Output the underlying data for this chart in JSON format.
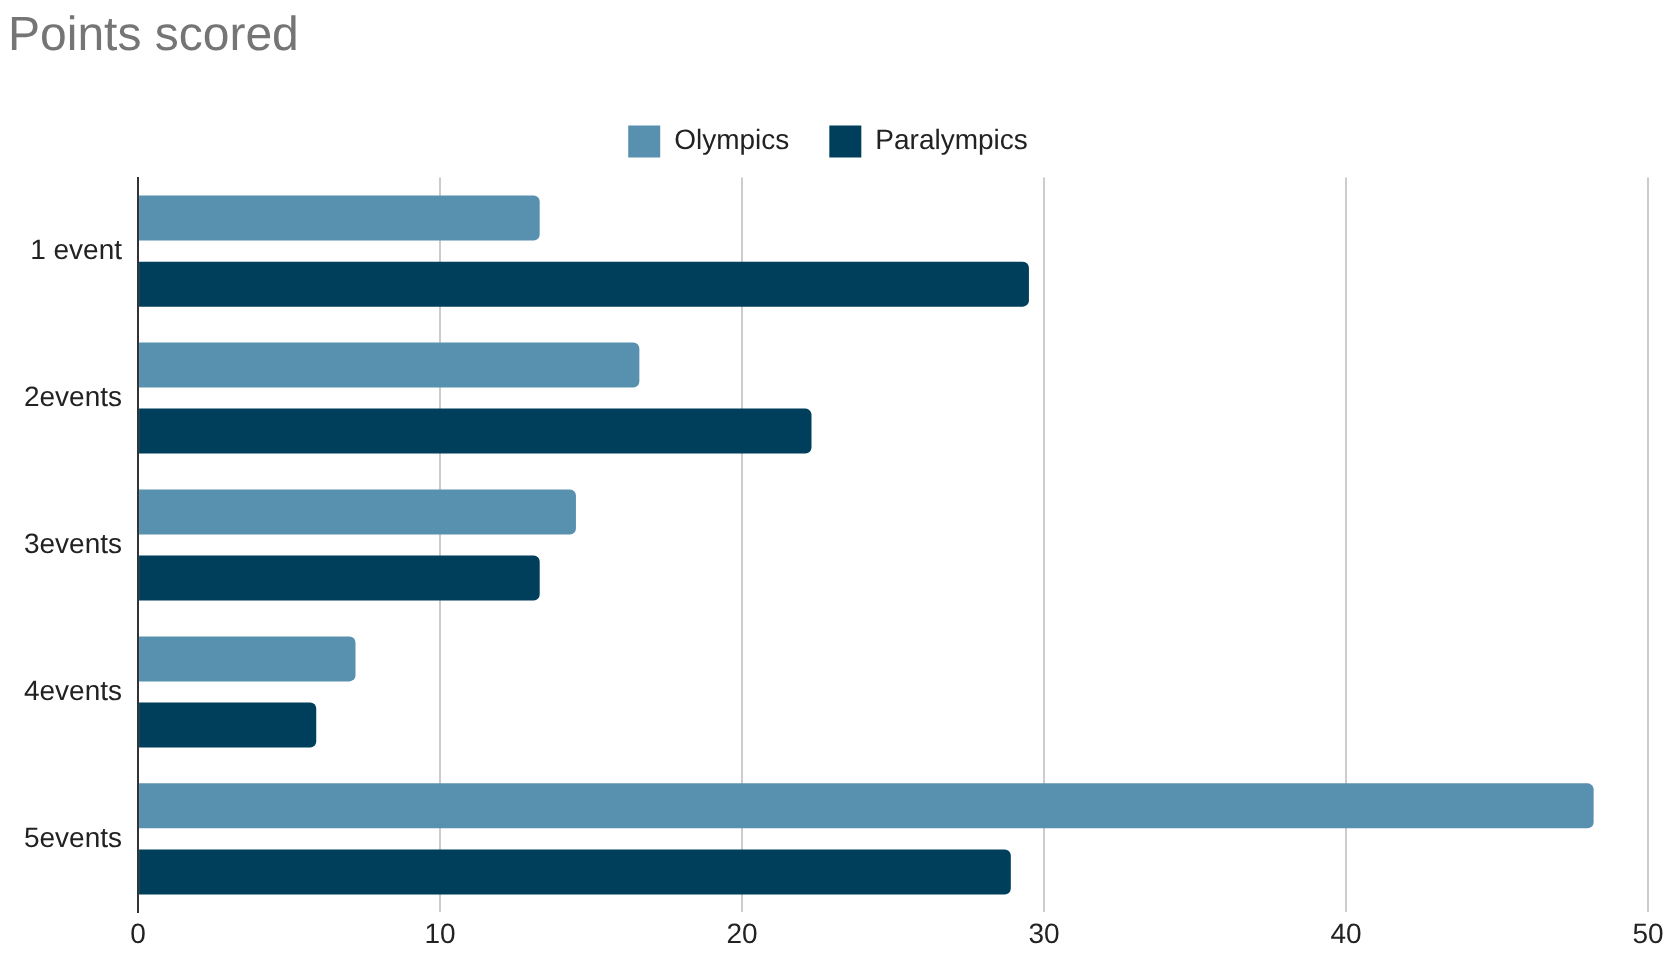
{
  "chart_data": {
    "type": "bar",
    "orientation": "horizontal",
    "title": "Points scored",
    "categories": [
      "1 event",
      "2events",
      "3events",
      "4events",
      "5events"
    ],
    "series": [
      {
        "name": "Olympics",
        "color": "#5891b0",
        "values": [
          13.3,
          16.6,
          14.5,
          7.2,
          48.2
        ]
      },
      {
        "name": "Paralympics",
        "color": "#003f5c",
        "values": [
          29.5,
          22.3,
          13.3,
          5.9,
          28.9
        ]
      }
    ],
    "xlim": [
      0,
      50
    ],
    "xticks": [
      0,
      10,
      20,
      30,
      40,
      50
    ],
    "grid": "x",
    "legend": "top"
  }
}
